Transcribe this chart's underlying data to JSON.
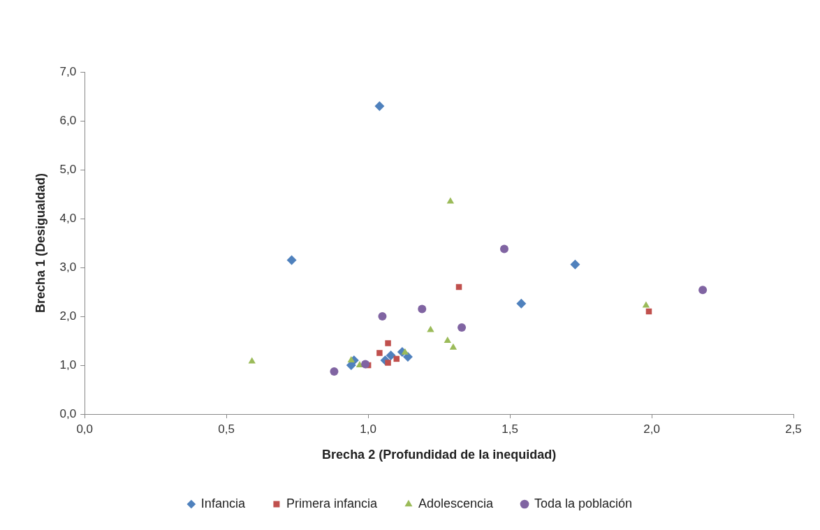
{
  "chart_data": {
    "type": "scatter",
    "xlabel": "Brecha 2 (Profundidad de la inequidad)",
    "ylabel": "Brecha 1 (Desigualdad)",
    "xlim": [
      0,
      2.5
    ],
    "ylim": [
      0,
      7
    ],
    "xticks": [
      {
        "value": 0,
        "label": "0,0"
      },
      {
        "value": 0.5,
        "label": "0,5"
      },
      {
        "value": 1,
        "label": "1,0"
      },
      {
        "value": 1.5,
        "label": "1,5"
      },
      {
        "value": 2,
        "label": "2,0"
      },
      {
        "value": 2.5,
        "label": "2,5"
      }
    ],
    "yticks": [
      {
        "value": 0,
        "label": "0,0"
      },
      {
        "value": 1,
        "label": "1,0"
      },
      {
        "value": 2,
        "label": "2,0"
      },
      {
        "value": 3,
        "label": "3,0"
      },
      {
        "value": 4,
        "label": "4,0"
      },
      {
        "value": 5,
        "label": "5,0"
      },
      {
        "value": 6,
        "label": "6,0"
      },
      {
        "value": 7,
        "label": "7,0"
      }
    ],
    "grid": false,
    "legend": "bottom",
    "series": [
      {
        "name": "Infancia",
        "color": "#4f81bd",
        "marker": "diamond",
        "x": [
          1.04,
          0.73,
          1.73,
          1.54,
          0.94,
          0.95,
          1.06,
          1.08,
          1.12,
          1.14
        ],
        "values": [
          6.3,
          3.15,
          3.06,
          2.26,
          1.0,
          1.1,
          1.1,
          1.2,
          1.27,
          1.17
        ]
      },
      {
        "name": "Primera infancia",
        "color": "#c0504d",
        "marker": "square",
        "x": [
          1.32,
          1.99,
          1.07,
          1.04,
          1.0,
          1.07,
          1.1
        ],
        "values": [
          2.6,
          2.1,
          1.45,
          1.25,
          1.0,
          1.05,
          1.13
        ]
      },
      {
        "name": "Adolescencia",
        "color": "#9bbb59",
        "marker": "triangle",
        "x": [
          0.59,
          1.29,
          1.98,
          1.22,
          1.28,
          1.3,
          1.13,
          0.94,
          0.97
        ],
        "values": [
          1.08,
          4.35,
          2.22,
          1.72,
          1.5,
          1.36,
          1.26,
          1.1,
          1.0
        ]
      },
      {
        "name": "Toda la población",
        "color": "#8064a2",
        "marker": "circle",
        "x": [
          1.48,
          2.18,
          1.05,
          1.19,
          1.33,
          0.88,
          0.99
        ],
        "values": [
          3.38,
          2.54,
          2.0,
          2.15,
          1.77,
          0.87,
          1.02
        ]
      }
    ]
  }
}
